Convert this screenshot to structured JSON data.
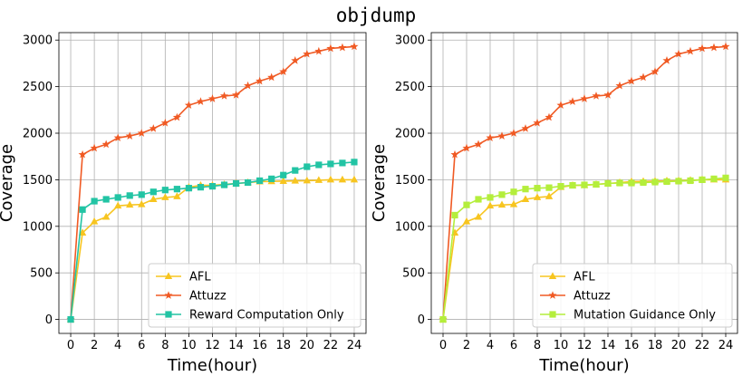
{
  "figure_title": "objdump",
  "chart_data": [
    {
      "type": "line",
      "xlabel": "Time(hour)",
      "ylabel": "Coverage",
      "xlim": [
        -1,
        25
      ],
      "ylim": [
        -150,
        3080
      ],
      "xticks": [
        "0",
        "2",
        "4",
        "6",
        "8",
        "10",
        "12",
        "14",
        "16",
        "18",
        "20",
        "22",
        "24"
      ],
      "yticks": [
        "0",
        "500",
        "1000",
        "1500",
        "2000",
        "2500",
        "3000"
      ],
      "grid": true,
      "legend_position": "lower-right",
      "series": [
        {
          "name": "AFL",
          "color": "#f7c520",
          "marker": "triangle",
          "x": [
            0,
            1,
            2,
            3,
            4,
            5,
            6,
            7,
            8,
            9,
            10,
            11,
            12,
            13,
            14,
            15,
            16,
            17,
            18,
            19,
            20,
            21,
            22,
            23,
            24
          ],
          "y": [
            0,
            930,
            1050,
            1100,
            1220,
            1230,
            1235,
            1290,
            1310,
            1320,
            1420,
            1440,
            1440,
            1450,
            1460,
            1470,
            1480,
            1482,
            1485,
            1488,
            1490,
            1495,
            1500,
            1500,
            1500
          ]
        },
        {
          "name": "Attuzz",
          "color": "#f05a24",
          "marker": "star",
          "x": [
            0,
            1,
            2,
            3,
            4,
            5,
            6,
            7,
            8,
            9,
            10,
            11,
            12,
            13,
            14,
            15,
            16,
            17,
            18,
            19,
            20,
            21,
            22,
            23,
            24
          ],
          "y": [
            0,
            1770,
            1840,
            1880,
            1950,
            1970,
            2000,
            2050,
            2110,
            2170,
            2300,
            2340,
            2370,
            2400,
            2410,
            2510,
            2560,
            2600,
            2660,
            2780,
            2850,
            2880,
            2910,
            2920,
            2930
          ]
        },
        {
          "name": "Reward Computation Only",
          "color": "#22c4a4",
          "marker": "square",
          "x": [
            0,
            1,
            2,
            3,
            4,
            5,
            6,
            7,
            8,
            9,
            10,
            11,
            12,
            13,
            14,
            15,
            16,
            17,
            18,
            19,
            20,
            21,
            22,
            23,
            24
          ],
          "y": [
            0,
            1180,
            1270,
            1290,
            1310,
            1330,
            1340,
            1370,
            1390,
            1400,
            1410,
            1420,
            1430,
            1445,
            1460,
            1470,
            1490,
            1510,
            1550,
            1600,
            1640,
            1660,
            1670,
            1680,
            1690
          ]
        }
      ]
    },
    {
      "type": "line",
      "xlabel": "Time(hour)",
      "ylabel": "Coverage",
      "xlim": [
        -1,
        25
      ],
      "ylim": [
        -150,
        3080
      ],
      "xticks": [
        "0",
        "2",
        "4",
        "6",
        "8",
        "10",
        "12",
        "14",
        "16",
        "18",
        "20",
        "22",
        "24"
      ],
      "yticks": [
        "0",
        "500",
        "1000",
        "1500",
        "2000",
        "2500",
        "3000"
      ],
      "grid": true,
      "legend_position": "lower-right",
      "series": [
        {
          "name": "AFL",
          "color": "#f7c520",
          "marker": "triangle",
          "x": [
            0,
            1,
            2,
            3,
            4,
            5,
            6,
            7,
            8,
            9,
            10,
            11,
            12,
            13,
            14,
            15,
            16,
            17,
            18,
            19,
            20,
            21,
            22,
            23,
            24
          ],
          "y": [
            0,
            930,
            1050,
            1100,
            1220,
            1230,
            1235,
            1290,
            1310,
            1320,
            1420,
            1440,
            1440,
            1450,
            1460,
            1470,
            1480,
            1482,
            1485,
            1488,
            1490,
            1495,
            1500,
            1500,
            1500
          ]
        },
        {
          "name": "Attuzz",
          "color": "#f05a24",
          "marker": "star",
          "x": [
            0,
            1,
            2,
            3,
            4,
            5,
            6,
            7,
            8,
            9,
            10,
            11,
            12,
            13,
            14,
            15,
            16,
            17,
            18,
            19,
            20,
            21,
            22,
            23,
            24
          ],
          "y": [
            0,
            1770,
            1840,
            1880,
            1950,
            1970,
            2000,
            2050,
            2110,
            2170,
            2300,
            2340,
            2370,
            2400,
            2410,
            2510,
            2560,
            2600,
            2660,
            2780,
            2850,
            2880,
            2910,
            2920,
            2930
          ]
        },
        {
          "name": "Mutation Guidance Only",
          "color": "#b4ee3c",
          "marker": "square",
          "x": [
            0,
            1,
            2,
            3,
            4,
            5,
            6,
            7,
            8,
            9,
            10,
            11,
            12,
            13,
            14,
            15,
            16,
            17,
            18,
            19,
            20,
            21,
            22,
            23,
            24
          ],
          "y": [
            0,
            1120,
            1230,
            1290,
            1310,
            1340,
            1370,
            1400,
            1410,
            1415,
            1430,
            1440,
            1445,
            1450,
            1460,
            1465,
            1465,
            1470,
            1475,
            1480,
            1485,
            1490,
            1500,
            1510,
            1520
          ]
        }
      ]
    }
  ]
}
